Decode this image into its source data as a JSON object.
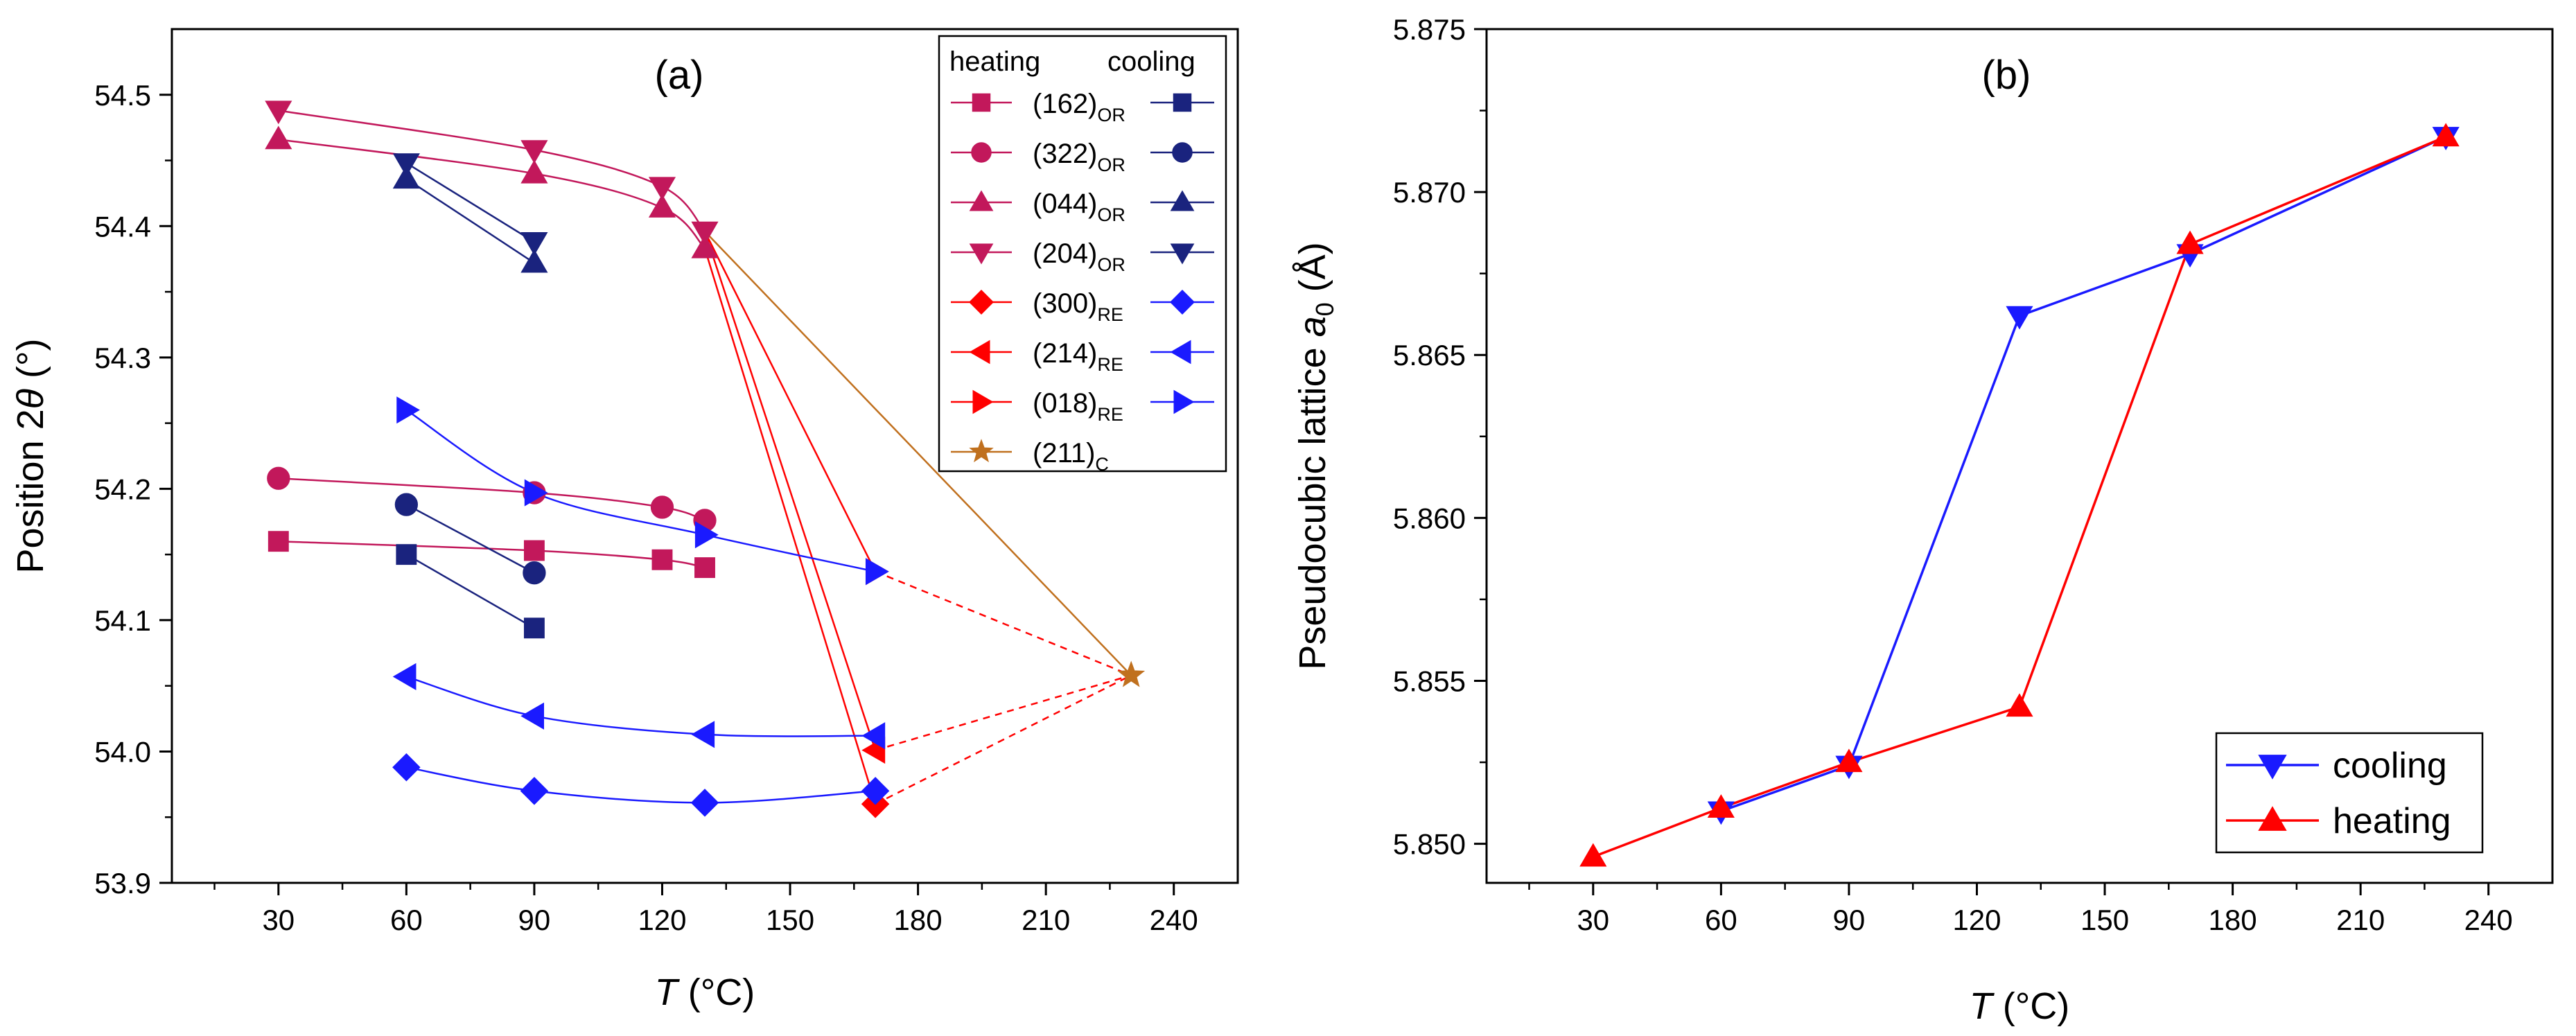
{
  "chart_data": [
    {
      "type": "line",
      "panel_label": "(a)",
      "xlabel": "T (°C)",
      "ylabel": "Position 2θ (°)",
      "xlim": [
        5,
        255
      ],
      "ylim": [
        53.9,
        54.55
      ],
      "xticks": [
        30,
        60,
        90,
        120,
        150,
        180,
        210,
        240
      ],
      "yticks": [
        53.9,
        54.0,
        54.1,
        54.2,
        54.3,
        54.4,
        54.5
      ],
      "ytick_labels": [
        "53.9",
        "54.0",
        "54.1",
        "54.2",
        "54.3",
        "54.4",
        "54.5"
      ],
      "legend": {
        "position": "top-right",
        "header_heating": "heating",
        "header_cooling": "cooling",
        "entries": [
          {
            "label": "(162)",
            "sub": "OR",
            "marker": "square",
            "heat": "#c2185b",
            "cool": "#1a237e"
          },
          {
            "label": "(322)",
            "sub": "OR",
            "marker": "circle",
            "heat": "#c2185b",
            "cool": "#1a237e"
          },
          {
            "label": "(044)",
            "sub": "OR",
            "marker": "triangle-up",
            "heat": "#c2185b",
            "cool": "#1a237e"
          },
          {
            "label": "(204)",
            "sub": "OR",
            "marker": "triangle-down",
            "heat": "#c2185b",
            "cool": "#1a237e"
          },
          {
            "label": "(300)",
            "sub": "RE",
            "marker": "diamond",
            "heat": "#ff0000",
            "cool": "#1a1aff"
          },
          {
            "label": "(214)",
            "sub": "RE",
            "marker": "triangle-left",
            "heat": "#ff0000",
            "cool": "#1a1aff"
          },
          {
            "label": "(018)",
            "sub": "RE",
            "marker": "triangle-right",
            "heat": "#ff0000",
            "cool": "#1a1aff"
          },
          {
            "label": "(211)",
            "sub": "C",
            "marker": "star",
            "heat": "#c0701e",
            "cool": ""
          }
        ]
      },
      "series": [
        {
          "group": "heating",
          "marker": "square",
          "color": "#c2185b",
          "x": [
            30,
            90,
            120,
            130
          ],
          "y": [
            54.16,
            54.153,
            54.146,
            54.14
          ]
        },
        {
          "group": "heating",
          "marker": "circle",
          "color": "#c2185b",
          "x": [
            30,
            90,
            120,
            130
          ],
          "y": [
            54.208,
            54.197,
            54.186,
            54.176
          ]
        },
        {
          "group": "heating",
          "marker": "triangle-up",
          "color": "#c2185b",
          "x": [
            30,
            90,
            120,
            130
          ],
          "y": [
            54.466,
            54.44,
            54.414,
            54.383
          ]
        },
        {
          "group": "heating",
          "marker": "triangle-down",
          "color": "#c2185b",
          "x": [
            30,
            90,
            120,
            130
          ],
          "y": [
            54.488,
            54.458,
            54.43,
            54.396
          ]
        },
        {
          "group": "heating",
          "marker": "diamond",
          "color": "#ff0000",
          "x": [
            170
          ],
          "y": [
            53.96
          ]
        },
        {
          "group": "heating",
          "marker": "triangle-left",
          "color": "#ff0000",
          "x": [
            170
          ],
          "y": [
            54.001
          ]
        },
        {
          "group": "heating",
          "marker": "triangle-right",
          "color": "#ff0000",
          "x": [
            170
          ],
          "y": [
            54.137
          ]
        },
        {
          "group": "heating",
          "marker": "star",
          "color": "#c0701e",
          "x": [
            230
          ],
          "y": [
            54.058
          ]
        },
        {
          "group": "cooling",
          "marker": "square",
          "color": "#1a237e",
          "x": [
            60,
            90
          ],
          "y": [
            54.15,
            54.094
          ]
        },
        {
          "group": "cooling",
          "marker": "circle",
          "color": "#1a237e",
          "x": [
            60,
            90
          ],
          "y": [
            54.188,
            54.136
          ]
        },
        {
          "group": "cooling",
          "marker": "triangle-up",
          "color": "#1a237e",
          "x": [
            60,
            90
          ],
          "y": [
            54.436,
            54.372
          ]
        },
        {
          "group": "cooling",
          "marker": "triangle-down",
          "color": "#1a237e",
          "x": [
            60,
            90
          ],
          "y": [
            54.448,
            54.388
          ]
        },
        {
          "group": "cooling",
          "marker": "diamond",
          "color": "#1a1aff",
          "x": [
            60,
            90,
            130,
            170
          ],
          "y": [
            53.988,
            53.97,
            53.961,
            53.97
          ]
        },
        {
          "group": "cooling",
          "marker": "triangle-left",
          "color": "#1a1aff",
          "x": [
            60,
            90,
            130,
            170
          ],
          "y": [
            54.057,
            54.027,
            54.013,
            54.012
          ]
        },
        {
          "group": "cooling",
          "marker": "triangle-right",
          "color": "#1a1aff",
          "x": [
            60,
            90,
            130,
            170
          ],
          "y": [
            54.26,
            54.197,
            54.165,
            54.137
          ]
        }
      ],
      "connectors": [
        {
          "style": "solid",
          "color": "#ff0000",
          "from": [
            130,
            54.383
          ],
          "to": [
            170,
            53.96
          ]
        },
        {
          "style": "solid",
          "color": "#ff0000",
          "from": [
            130,
            54.396
          ],
          "to": [
            170,
            54.001
          ]
        },
        {
          "style": "solid",
          "color": "#ff0000",
          "from": [
            130,
            54.396
          ],
          "to": [
            170,
            54.137
          ]
        },
        {
          "style": "solid",
          "color": "#c0701e",
          "from": [
            130,
            54.396
          ],
          "to": [
            230,
            54.058
          ]
        },
        {
          "style": "dashed",
          "color": "#ff0000",
          "from": [
            170,
            54.137
          ],
          "to": [
            230,
            54.058
          ]
        },
        {
          "style": "dashed",
          "color": "#ff0000",
          "from": [
            170,
            54.001
          ],
          "to": [
            230,
            54.058
          ]
        },
        {
          "style": "dashed",
          "color": "#ff0000",
          "from": [
            170,
            53.96
          ],
          "to": [
            230,
            54.058
          ]
        }
      ]
    },
    {
      "type": "line",
      "panel_label": "(b)",
      "xlabel": "T (°C)",
      "ylabel": "Pseudocubic lattice a0 (Å)",
      "xlim": [
        5,
        255
      ],
      "ylim": [
        5.8488,
        5.875
      ],
      "xticks": [
        30,
        60,
        90,
        120,
        150,
        180,
        210,
        240
      ],
      "yticks": [
        5.85,
        5.855,
        5.86,
        5.865,
        5.87,
        5.875
      ],
      "ytick_labels": [
        "5.850",
        "5.855",
        "5.860",
        "5.865",
        "5.870",
        "5.875"
      ],
      "legend": {
        "position": "bottom-right"
      },
      "series": [
        {
          "name": "cooling",
          "marker": "triangle-down",
          "color": "#1a1aff",
          "x": [
            60,
            90,
            130,
            170,
            230
          ],
          "y": [
            5.851,
            5.8524,
            5.8662,
            5.8681,
            5.8717
          ]
        },
        {
          "name": "heating",
          "marker": "triangle-up",
          "color": "#ff0000",
          "x": [
            30,
            60,
            90,
            130,
            170,
            230
          ],
          "y": [
            5.8496,
            5.8511,
            5.8525,
            5.8542,
            5.8684,
            5.8717
          ]
        }
      ]
    }
  ]
}
